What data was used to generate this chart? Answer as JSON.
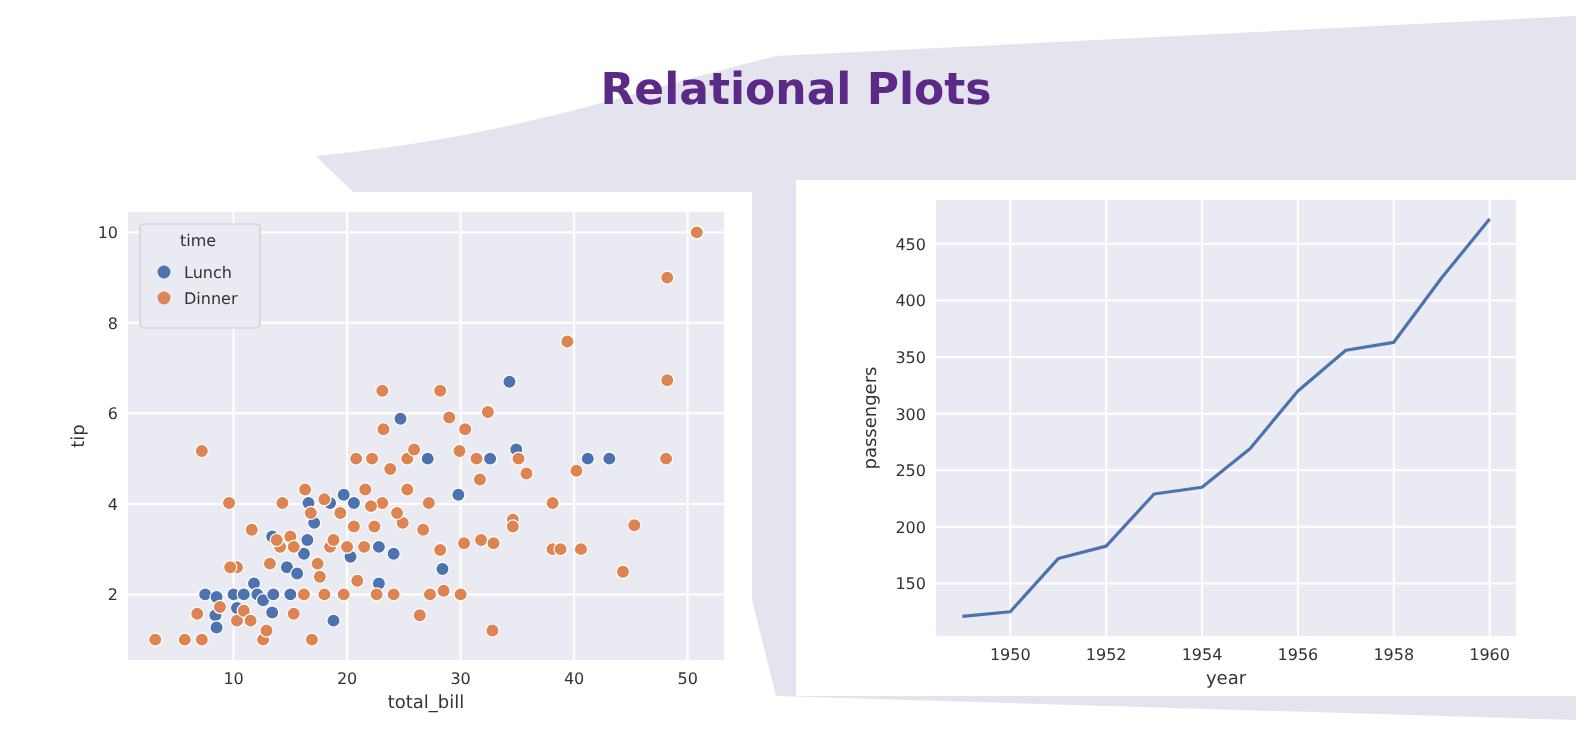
{
  "chart_data": [
    {
      "type": "scatter",
      "title": "Relational Plots",
      "xlabel": "total_bill",
      "ylabel": "tip",
      "legend_title": "time",
      "legend": "top left",
      "grid": true,
      "marker": "circle",
      "xlim": [
        0.7,
        53.2
      ],
      "ylim": [
        0.55,
        10.45
      ],
      "xticks": [
        10,
        20,
        30,
        40,
        50
      ],
      "yticks": [
        2,
        4,
        6,
        8,
        10
      ],
      "series": [
        {
          "name": "Lunch",
          "color": "#4c72b0",
          "x": [
            7.5,
            8.5,
            8.4,
            8.5,
            10,
            10.3,
            10.9,
            11.8,
            12.1,
            12.6,
            13.5,
            13.4,
            13.4,
            15,
            14.7,
            16.5,
            16.6,
            18.5,
            17.1,
            19.7,
            20.3,
            18.8,
            20.6,
            22.8,
            24.7,
            27.1,
            24.1,
            22.8,
            28.4,
            29.8,
            32.6,
            34.3,
            34.9,
            41.2,
            43.1,
            16.2,
            15.6
          ],
          "values": [
            2.0,
            1.94,
            1.54,
            1.27,
            2.0,
            1.7,
            2.0,
            2.24,
            2.0,
            1.87,
            2.0,
            1.6,
            3.28,
            2.0,
            2.6,
            3.2,
            4.02,
            4.02,
            3.58,
            4.2,
            2.83,
            1.42,
            4.02,
            3.05,
            5.88,
            5.0,
            2.9,
            2.24,
            2.56,
            4.2,
            5.0,
            6.7,
            5.2,
            5.0,
            5.0,
            2.9,
            2.46
          ]
        },
        {
          "name": "Dinner",
          "color": "#dd8452",
          "x": [
            3.1,
            5.7,
            7.2,
            7.2,
            9.6,
            10.3,
            10.3,
            11.6,
            12.6,
            12.9,
            14.1,
            14.3,
            15.0,
            16.3,
            16.9,
            17.4,
            18.0,
            18.0,
            18.5,
            19.7,
            20.8,
            20.6,
            21.6,
            22.2,
            23.1,
            23.2,
            22.6,
            23.1,
            24.1,
            25.3,
            25.9,
            25.3,
            24.9,
            26.4,
            27.2,
            26.7,
            27.3,
            28.2,
            28.2,
            28.5,
            29.0,
            30.0,
            30.4,
            29.9,
            30.3,
            31.4,
            31.7,
            31.8,
            32.4,
            32.8,
            32.9,
            34.6,
            34.6,
            35.1,
            35.8,
            38.1,
            38.1,
            38.8,
            39.4,
            40.2,
            40.6,
            44.3,
            45.3,
            48.2,
            48.2,
            48.1,
            50.8,
            9.7,
            10.9,
            13.2,
            13.8,
            15.3,
            16.2,
            16.8,
            17.6,
            18.8,
            19.4,
            20.0,
            20.9,
            21.5,
            22.1,
            22.4,
            24.4,
            23.8,
            6.8,
            8.8,
            11.5,
            15.3
          ],
          "values": [
            1.0,
            1.0,
            1.0,
            5.17,
            4.02,
            1.42,
            2.6,
            3.43,
            1.0,
            1.2,
            3.05,
            4.02,
            3.28,
            4.32,
            1.0,
            2.68,
            4.1,
            2.0,
            3.05,
            2.0,
            5.0,
            3.5,
            4.32,
            5.0,
            6.5,
            5.65,
            2.0,
            4.02,
            2.0,
            5.0,
            5.2,
            4.32,
            3.58,
            1.54,
            4.02,
            3.43,
            2.0,
            6.5,
            2.98,
            2.08,
            5.91,
            2.0,
            5.65,
            5.17,
            3.13,
            5.0,
            4.54,
            3.2,
            6.03,
            1.2,
            3.13,
            3.65,
            3.5,
            5.0,
            4.67,
            4.02,
            3.0,
            3.0,
            7.59,
            4.73,
            3.0,
            2.5,
            3.53,
            9.0,
            6.73,
            5.0,
            10.0,
            2.6,
            1.64,
            2.68,
            3.2,
            3.05,
            2.0,
            3.8,
            2.39,
            3.2,
            3.8,
            3.05,
            2.3,
            3.05,
            3.95,
            3.5,
            3.8,
            4.77,
            1.57,
            1.72,
            1.42,
            1.57
          ]
        }
      ]
    },
    {
      "type": "line",
      "xlabel": "year",
      "ylabel": "passengers",
      "grid": true,
      "xlim": [
        1948.45,
        1960.55
      ],
      "ylim": [
        103.6,
        488.7
      ],
      "xticks": [
        1950,
        1952,
        1954,
        1956,
        1958,
        1960
      ],
      "yticks": [
        150,
        200,
        250,
        300,
        350,
        400,
        450
      ],
      "x": [
        1949,
        1950,
        1951,
        1952,
        1953,
        1954,
        1955,
        1956,
        1957,
        1958,
        1959,
        1960
      ],
      "series": [
        {
          "color": "#4c72b0",
          "values": [
            121,
            125,
            172,
            183,
            229,
            235,
            269,
            320,
            356,
            363,
            420,
            472
          ]
        }
      ]
    }
  ]
}
